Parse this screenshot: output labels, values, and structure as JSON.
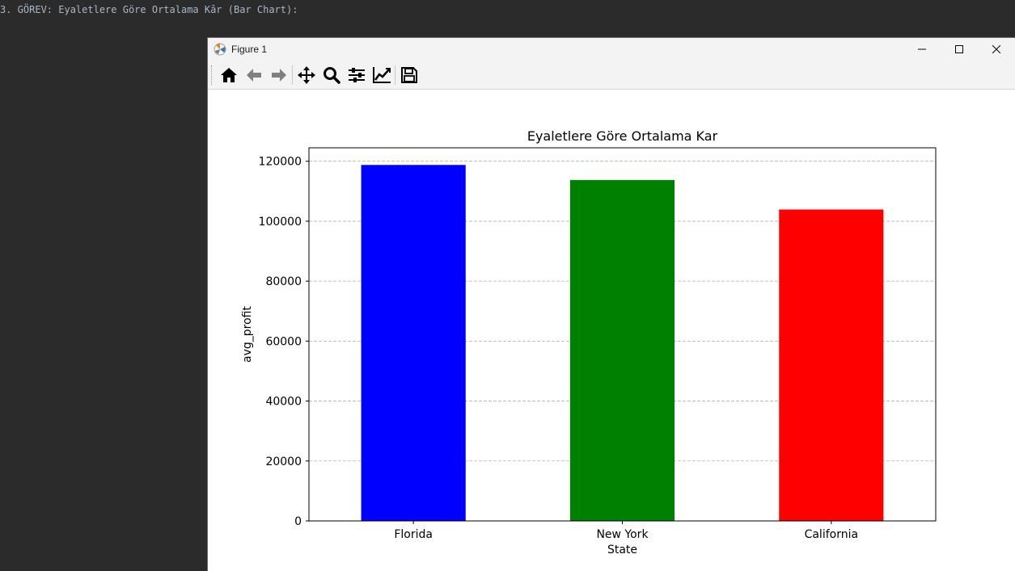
{
  "terminal": {
    "line": "3. GÖREV: Eyaletlere Göre Ortalama Kâr (Bar Chart):"
  },
  "window": {
    "title": "Figure 1"
  },
  "chart_data": {
    "type": "bar",
    "title": "Eyaletlere Göre Ortalama Kar",
    "xlabel": "State",
    "ylabel": "avg_profit",
    "categories": [
      "Florida",
      "New York",
      "California"
    ],
    "values": [
      118774,
      113756,
      103906
    ],
    "colors": [
      "#0000ff",
      "#008000",
      "#ff0000"
    ],
    "ylim": [
      0,
      124500
    ],
    "yticks": [
      0,
      20000,
      40000,
      60000,
      80000,
      100000,
      120000
    ],
    "grid": "y-dashed"
  }
}
